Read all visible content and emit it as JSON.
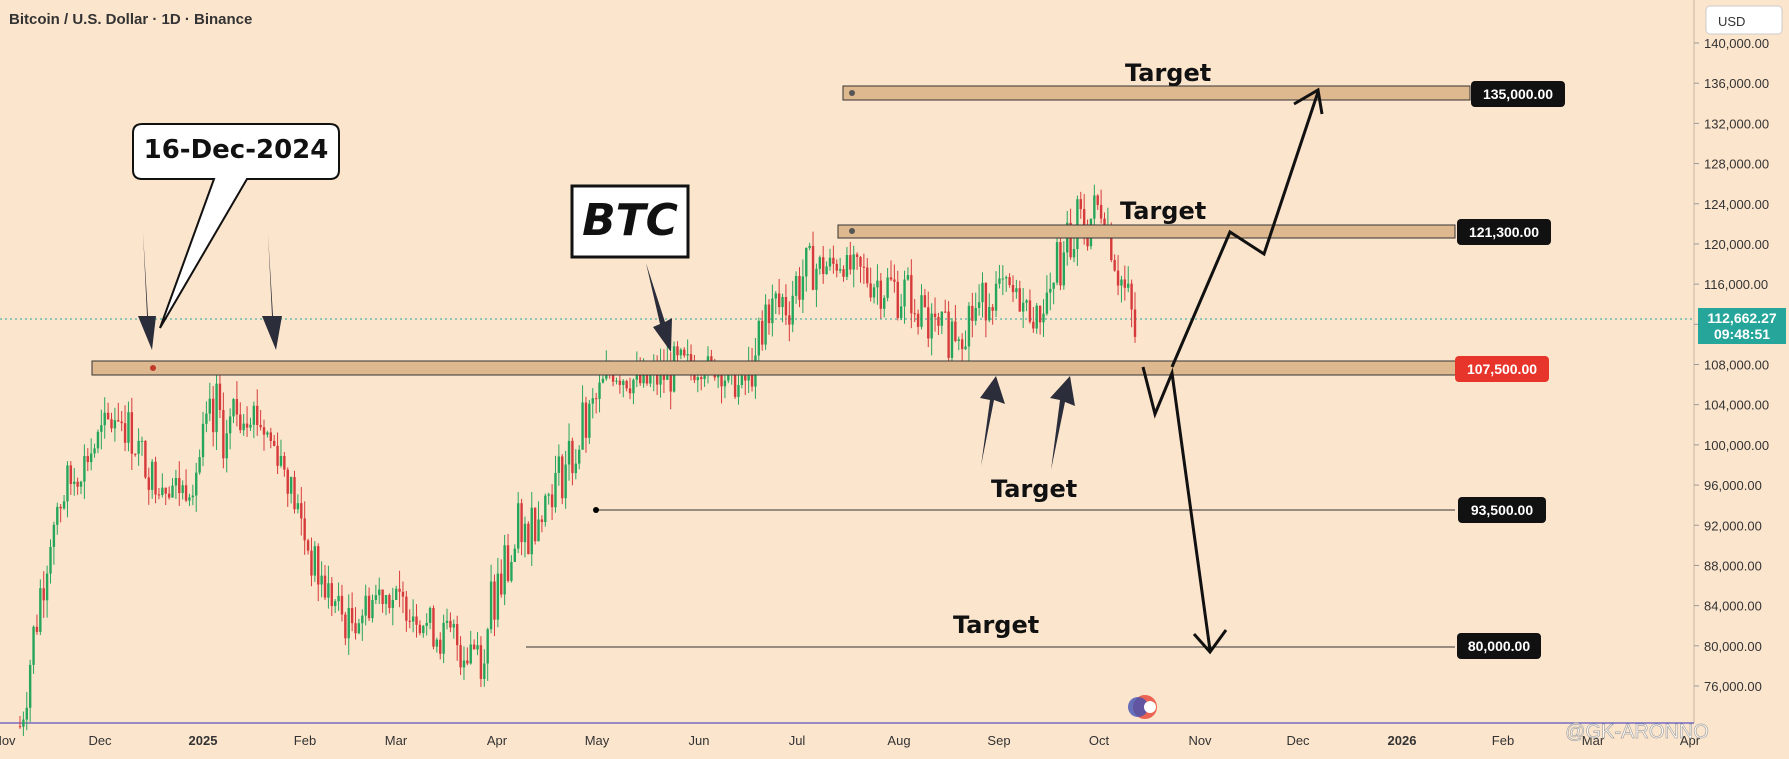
{
  "header": {
    "title": "Bitcoin / U.S. Dollar · 1D · Binance",
    "currency": "USD"
  },
  "watermark": "@GK-ARONNO",
  "symbol_label": "BTC",
  "callout_date": "16-Dec-2024",
  "current_price": {
    "value": "112,662.27",
    "countdown": "09:48:51"
  },
  "levels": [
    {
      "id": "l135",
      "tag": "135,000.00",
      "value": 135000,
      "kind": "zone",
      "tag_color": "#111111"
    },
    {
      "id": "l121",
      "tag": "121,300.00",
      "value": 121300,
      "kind": "zone",
      "tag_color": "#111111"
    },
    {
      "id": "l107",
      "tag": "107,500.00",
      "value": 107500,
      "kind": "zone",
      "tag_color": "#e8352c"
    },
    {
      "id": "l93",
      "tag": "93,500.00",
      "value": 93500,
      "kind": "line",
      "tag_color": "#111111"
    },
    {
      "id": "l80",
      "tag": "80,000.00",
      "value": 80000,
      "kind": "line",
      "tag_color": "#111111"
    }
  ],
  "targets": [
    "Target",
    "Target",
    "Target",
    "Target"
  ],
  "chart_data": {
    "type": "candlestick",
    "title": "Bitcoin / U.S. Dollar · 1D · Binance",
    "y_ticks": [
      "140,000.00",
      "136,000.00",
      "132,000.00",
      "128,000.00",
      "124,000.00",
      "120,000.00",
      "116,000.00",
      "112,000.00",
      "108,000.00",
      "104,000.00",
      "100,000.00",
      "96,000.00",
      "92,000.00",
      "88,000.00",
      "84,000.00",
      "80,000.00",
      "76,000.00"
    ],
    "x_ticks": [
      "Nov",
      "Dec",
      "2025",
      "Feb",
      "Mar",
      "Apr",
      "May",
      "Jun",
      "Jul",
      "Aug",
      "Sep",
      "Oct",
      "Nov",
      "Dec",
      "2026",
      "Feb",
      "Mar",
      "Apr"
    ],
    "ylim": [
      72000,
      142000
    ],
    "series": [
      {
        "values": [
          [
            69000,
            75000
          ],
          [
            90000,
            97000
          ],
          [
            97000,
            100000
          ],
          [
            101000,
            106000
          ],
          [
            95000,
            99000
          ],
          [
            94000,
            97000
          ],
          [
            97000,
            107000
          ],
          [
            102000,
            106000
          ],
          [
            97000,
            100000
          ],
          [
            85000,
            90000
          ],
          [
            80000,
            84000
          ],
          [
            84000,
            87000
          ],
          [
            82000,
            85000
          ],
          [
            78000,
            83000
          ],
          [
            76000,
            85000
          ],
          [
            84000,
            94000
          ],
          [
            93000,
            96000
          ],
          [
            96000,
            104000
          ],
          [
            106000,
            109000
          ],
          [
            104000,
            108000
          ],
          [
            105000,
            110000
          ],
          [
            107000,
            109000
          ],
          [
            104000,
            107000
          ],
          [
            108000,
            118000
          ],
          [
            115000,
            120000
          ],
          [
            117000,
            119000
          ],
          [
            114000,
            119000
          ],
          [
            112000,
            118000
          ],
          [
            108000,
            113000
          ],
          [
            110000,
            116000
          ],
          [
            115000,
            117000
          ],
          [
            111000,
            114000
          ],
          [
            115000,
            125000
          ],
          [
            122000,
            126000
          ],
          [
            107000,
            115000
          ]
        ]
      }
    ]
  }
}
